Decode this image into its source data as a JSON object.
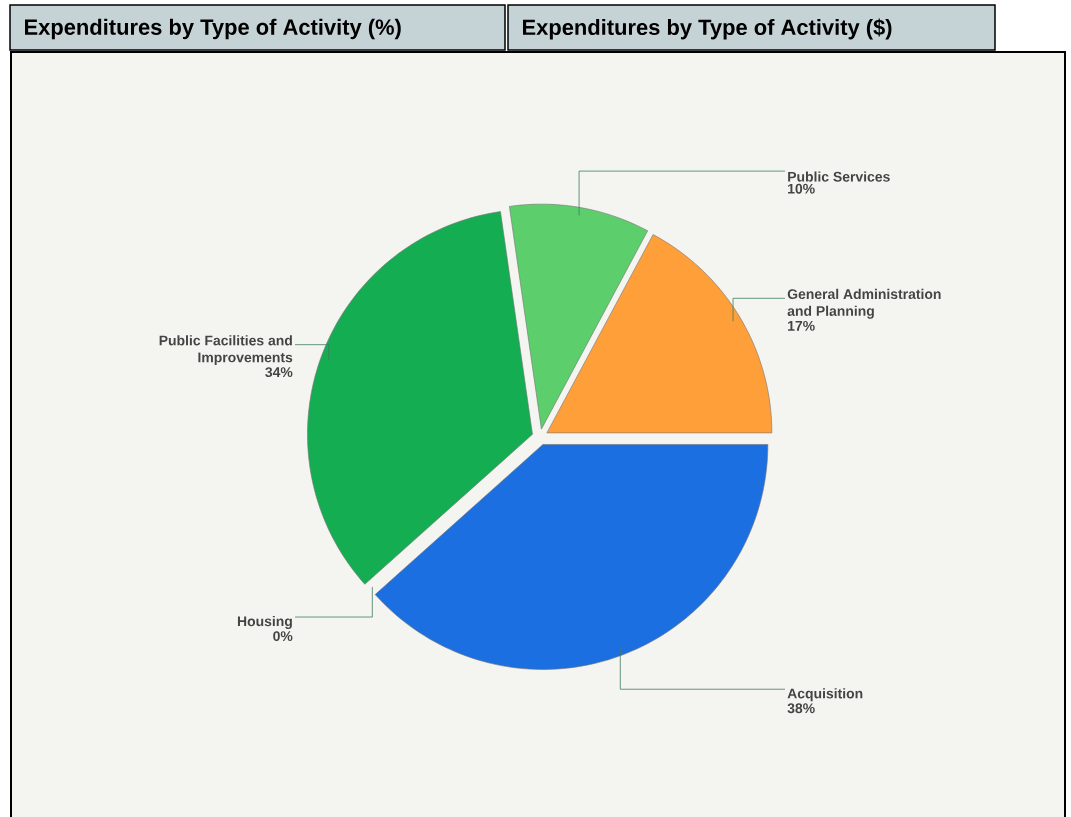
{
  "chart_data": {
    "type": "pie",
    "title": "Expenditures by Type of Activity (%)",
    "subtitle": "Expenditures by Type of Activity ($)",
    "categories": [
      "General Administration and Planning",
      "Public Services",
      "Public Facilities and Improvements",
      "Housing",
      "Acquisition"
    ],
    "values": [
      17,
      10,
      34,
      0,
      38
    ],
    "colors": [
      "#ff9f3a",
      "#5ccf6c",
      "#14ad52",
      "#2e7d4f",
      "#1b6fe0"
    ],
    "value_labels": [
      "17%",
      "10%",
      "34%",
      "0%",
      "38%"
    ]
  }
}
